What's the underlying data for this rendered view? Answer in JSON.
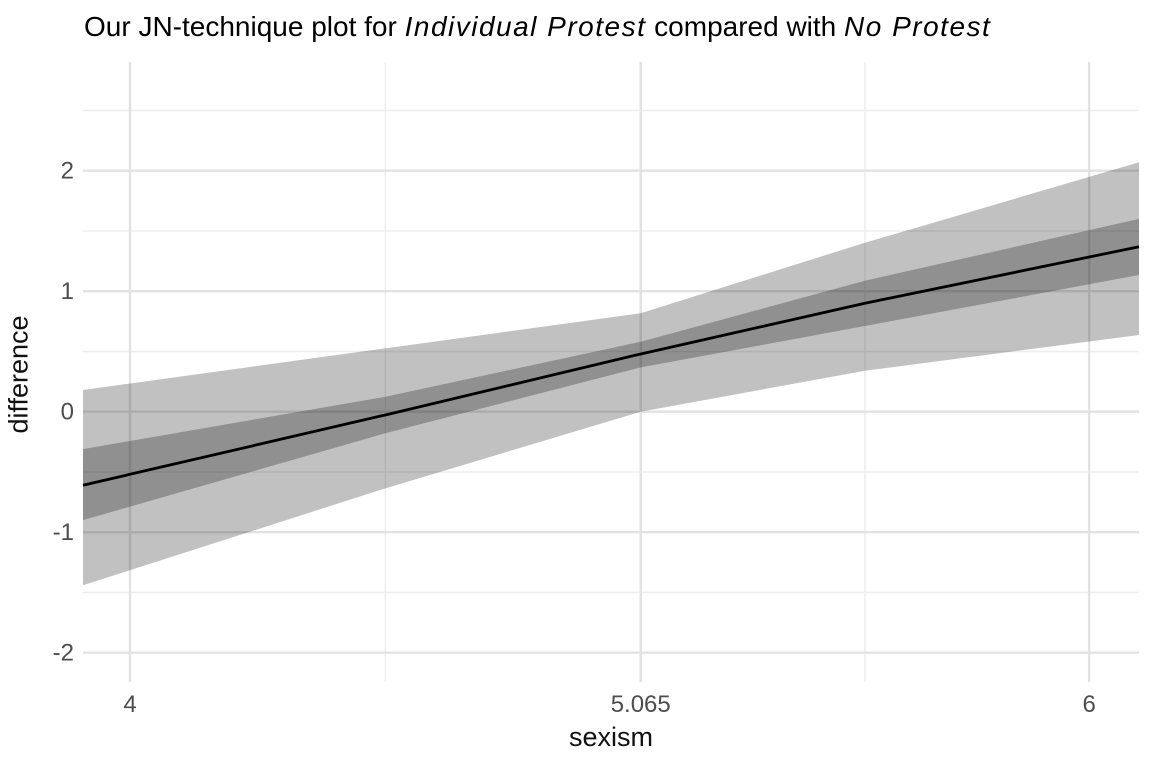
{
  "title": {
    "full_text": "Our JN-technique plot for Individual Protest compared with No Protest",
    "segments": [
      {
        "text": "Our JN-technique plot for ",
        "italic": false
      },
      {
        "text": "Individual Protest",
        "italic": true
      },
      {
        "text": " compared with ",
        "italic": false
      },
      {
        "text": "No Protest",
        "italic": true
      }
    ]
  },
  "chart_data": {
    "type": "line",
    "title": "Our JN-technique plot for Individual Protest compared with No Protest",
    "xlabel": "sexism",
    "ylabel": "difference",
    "x_domain": [
      3.902,
      6.104
    ],
    "y_domain": [
      -2.243,
      2.902
    ],
    "x_breaks": [
      {
        "value": 4,
        "label": "4"
      },
      {
        "value": 5.065,
        "label": "5.065"
      },
      {
        "value": 6,
        "label": "6"
      }
    ],
    "x_minor_breaks": [
      4.5325,
      5.5325
    ],
    "y_breaks": [
      {
        "value": -2,
        "label": "-2"
      },
      {
        "value": -1,
        "label": "-1"
      },
      {
        "value": 0,
        "label": "0"
      },
      {
        "value": 1,
        "label": "1"
      },
      {
        "value": 2,
        "label": "2"
      }
    ],
    "y_minor_breaks": [
      -1.5,
      -0.5,
      0.5,
      1.5,
      2.5
    ],
    "jn_point": 5.065,
    "x": [
      3.902,
      4.5325,
      5.065,
      5.5325,
      6.104
    ],
    "series": [
      {
        "name": "difference-line",
        "type": "line",
        "values": [
          -0.61,
          -0.027,
          0.479,
          0.9,
          1.369
        ]
      },
      {
        "name": "inner-ci-band",
        "type": "band",
        "lower": [
          -0.9,
          -0.179,
          0.368,
          0.711,
          1.134
        ],
        "upper": [
          -0.31,
          0.124,
          0.581,
          1.087,
          1.6
        ]
      },
      {
        "name": "outer-ci-band",
        "type": "band",
        "lower": [
          -1.44,
          -0.636,
          0.0,
          0.34,
          0.637
        ],
        "upper": [
          0.18,
          0.526,
          0.817,
          1.402,
          2.07
        ]
      }
    ],
    "legend": "none",
    "grid": true,
    "colors": {
      "line": "#000000",
      "outer_band": "rgba(0,0,0,0.245)",
      "inner_band": "rgba(0,0,0,0.250)",
      "grid_major": "#e2e2e2",
      "grid_minor": "#ededed",
      "tick_label": "#4d4d4d",
      "axis_title": "#111111",
      "title": "#000000",
      "background": "#ffffff"
    }
  }
}
